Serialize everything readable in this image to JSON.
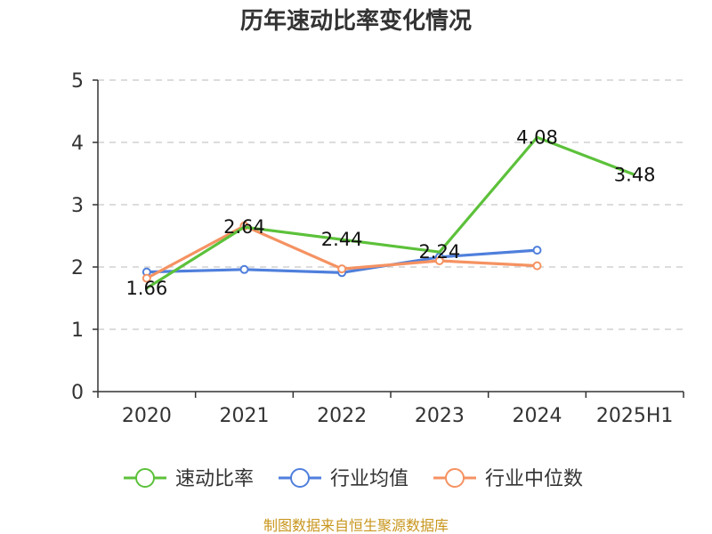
{
  "chart_data": {
    "type": "line",
    "title": "历年速动比率变化情况",
    "xlabel": "",
    "ylabel": "",
    "categories": [
      "2020",
      "2021",
      "2022",
      "2023",
      "2024",
      "2025H1"
    ],
    "ylim": [
      0,
      5
    ],
    "yticks": [
      "0",
      "1",
      "2",
      "3",
      "4",
      "5"
    ],
    "grid": true,
    "legend_position": "bottom",
    "series": [
      {
        "name": "速动比率",
        "color": "#5cc13a",
        "values": [
          1.66,
          2.64,
          2.44,
          2.24,
          4.08,
          3.48
        ],
        "labels": [
          "1.66",
          "2.64",
          "2.44",
          "2.24",
          "4.08",
          "3.48"
        ],
        "show_markers": false
      },
      {
        "name": "行业均值",
        "color": "#4f7fdc",
        "values": [
          1.92,
          1.96,
          1.91,
          2.16,
          2.27,
          null
        ],
        "show_markers": true
      },
      {
        "name": "行业中位数",
        "color": "#f59262",
        "values": [
          1.82,
          2.66,
          1.97,
          2.1,
          2.02,
          null
        ],
        "show_markers": true
      }
    ]
  },
  "footer": {
    "source": "制图数据来自恒生聚源数据库"
  }
}
